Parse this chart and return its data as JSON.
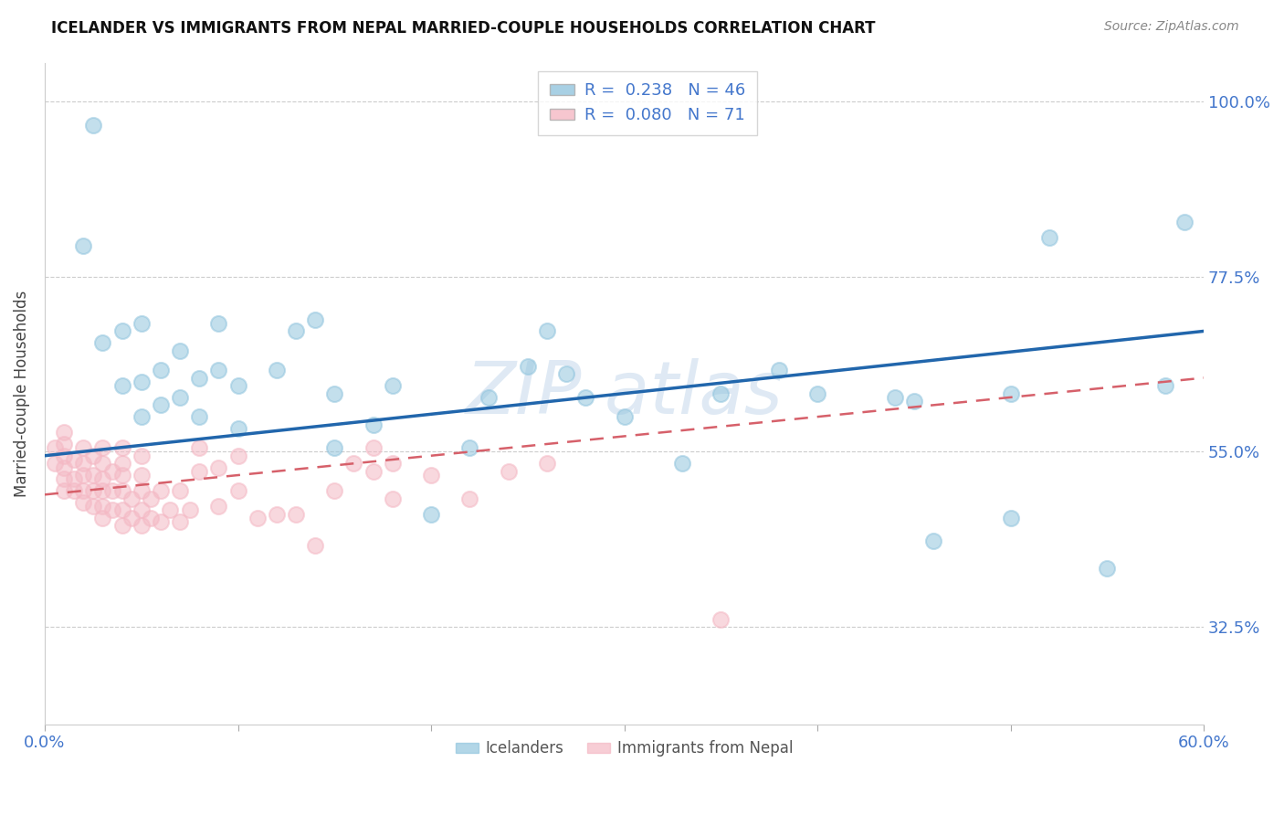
{
  "title": "ICELANDER VS IMMIGRANTS FROM NEPAL MARRIED-COUPLE HOUSEHOLDS CORRELATION CHART",
  "source": "Source: ZipAtlas.com",
  "ylabel": "Married-couple Households",
  "xlim": [
    0.0,
    0.6
  ],
  "ylim": [
    0.2,
    1.05
  ],
  "yticks": [
    0.325,
    0.55,
    0.775,
    1.0
  ],
  "ytick_labels": [
    "32.5%",
    "55.0%",
    "77.5%",
    "100.0%"
  ],
  "xticks": [
    0.0,
    0.1,
    0.2,
    0.3,
    0.4,
    0.5,
    0.6
  ],
  "blue_color": "#92c5de",
  "pink_color": "#f4b8c4",
  "trend_blue_color": "#2166ac",
  "trend_pink_color": "#d6606a",
  "axis_color": "#4477cc",
  "blue_x": [
    0.025,
    0.02,
    0.03,
    0.04,
    0.04,
    0.05,
    0.05,
    0.05,
    0.06,
    0.06,
    0.07,
    0.07,
    0.08,
    0.08,
    0.09,
    0.09,
    0.1,
    0.1,
    0.12,
    0.13,
    0.14,
    0.15,
    0.15,
    0.17,
    0.18,
    0.2,
    0.22,
    0.23,
    0.25,
    0.26,
    0.27,
    0.28,
    0.3,
    0.33,
    0.35,
    0.38,
    0.4,
    0.44,
    0.46,
    0.5,
    0.52,
    0.55,
    0.58,
    0.59,
    0.5,
    0.45
  ],
  "blue_y": [
    0.97,
    0.815,
    0.69,
    0.635,
    0.705,
    0.595,
    0.64,
    0.715,
    0.61,
    0.655,
    0.62,
    0.68,
    0.595,
    0.645,
    0.655,
    0.715,
    0.58,
    0.635,
    0.655,
    0.705,
    0.72,
    0.555,
    0.625,
    0.585,
    0.635,
    0.47,
    0.555,
    0.62,
    0.66,
    0.705,
    0.65,
    0.62,
    0.595,
    0.535,
    0.625,
    0.655,
    0.625,
    0.62,
    0.435,
    0.465,
    0.825,
    0.4,
    0.635,
    0.845,
    0.625,
    0.615
  ],
  "pink_x": [
    0.005,
    0.005,
    0.01,
    0.01,
    0.01,
    0.01,
    0.01,
    0.01,
    0.015,
    0.015,
    0.015,
    0.02,
    0.02,
    0.02,
    0.02,
    0.02,
    0.025,
    0.025,
    0.025,
    0.025,
    0.03,
    0.03,
    0.03,
    0.03,
    0.03,
    0.03,
    0.035,
    0.035,
    0.035,
    0.04,
    0.04,
    0.04,
    0.04,
    0.04,
    0.04,
    0.045,
    0.045,
    0.05,
    0.05,
    0.05,
    0.05,
    0.05,
    0.055,
    0.055,
    0.06,
    0.06,
    0.065,
    0.07,
    0.07,
    0.075,
    0.08,
    0.08,
    0.09,
    0.09,
    0.1,
    0.1,
    0.11,
    0.12,
    0.13,
    0.14,
    0.15,
    0.16,
    0.17,
    0.17,
    0.18,
    0.18,
    0.2,
    0.22,
    0.24,
    0.26,
    0.35
  ],
  "pink_y": [
    0.535,
    0.555,
    0.5,
    0.515,
    0.53,
    0.545,
    0.56,
    0.575,
    0.5,
    0.515,
    0.54,
    0.485,
    0.5,
    0.52,
    0.535,
    0.555,
    0.48,
    0.5,
    0.52,
    0.545,
    0.465,
    0.48,
    0.5,
    0.515,
    0.535,
    0.555,
    0.475,
    0.5,
    0.525,
    0.455,
    0.475,
    0.5,
    0.52,
    0.535,
    0.555,
    0.465,
    0.49,
    0.455,
    0.475,
    0.5,
    0.52,
    0.545,
    0.465,
    0.49,
    0.46,
    0.5,
    0.475,
    0.46,
    0.5,
    0.475,
    0.525,
    0.555,
    0.48,
    0.53,
    0.5,
    0.545,
    0.465,
    0.47,
    0.47,
    0.43,
    0.5,
    0.535,
    0.525,
    0.555,
    0.49,
    0.535,
    0.52,
    0.49,
    0.525,
    0.535,
    0.335
  ],
  "blue_trend_x0": 0.0,
  "blue_trend_y0": 0.545,
  "blue_trend_x1": 0.6,
  "blue_trend_y1": 0.705,
  "pink_trend_x0": 0.0,
  "pink_trend_y0": 0.495,
  "pink_trend_x1": 0.6,
  "pink_trend_y1": 0.645
}
